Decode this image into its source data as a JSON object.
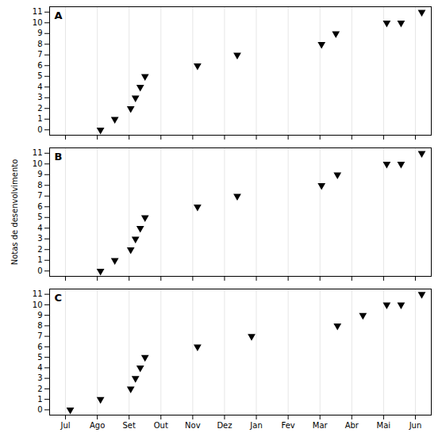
{
  "chart_data": [
    {
      "type": "scatter",
      "title": "A",
      "x": [
        1.1,
        1.55,
        2.05,
        2.2,
        2.35,
        2.5,
        4.15,
        5.4,
        8.05,
        8.5,
        10.1,
        10.55,
        11.2
      ],
      "values": [
        0,
        1,
        2,
        3,
        4,
        5,
        6,
        7,
        8,
        9,
        10,
        10,
        11
      ],
      "color": "black",
      "marker": "triangle-down",
      "xlim": [
        -0.5,
        11.5
      ],
      "xticks": [
        0,
        1,
        2,
        3,
        4,
        5,
        6,
        7,
        8,
        9,
        10,
        11
      ],
      "ylim": [
        -0.5,
        11.5
      ],
      "yticks": [
        0,
        1,
        2,
        3,
        4,
        5,
        6,
        7,
        8,
        9,
        10,
        11
      ],
      "grid": "x",
      "tick_labels": "y"
    },
    {
      "type": "scatter",
      "title": "B",
      "ylabel": "Notas de desenvolvimento",
      "x": [
        1.1,
        1.55,
        2.05,
        2.2,
        2.35,
        2.5,
        4.15,
        5.4,
        8.05,
        8.55,
        10.1,
        10.55,
        11.2
      ],
      "values": [
        0,
        1,
        2,
        3,
        4,
        5,
        6,
        7,
        8,
        9,
        10,
        10,
        11
      ],
      "color": "black",
      "marker": "triangle-down",
      "xlim": [
        -0.5,
        11.5
      ],
      "xticks": [
        0,
        1,
        2,
        3,
        4,
        5,
        6,
        7,
        8,
        9,
        10,
        11
      ],
      "ylim": [
        -0.5,
        11.5
      ],
      "yticks": [
        0,
        1,
        2,
        3,
        4,
        5,
        6,
        7,
        8,
        9,
        10,
        11
      ],
      "grid": "x",
      "tick_labels": "y"
    },
    {
      "type": "scatter",
      "title": "C",
      "x": [
        0.15,
        1.1,
        2.05,
        2.2,
        2.35,
        2.5,
        4.15,
        5.85,
        8.55,
        9.35,
        10.1,
        10.55,
        11.2
      ],
      "values": [
        0,
        1,
        2,
        3,
        4,
        5,
        6,
        7,
        8,
        9,
        10,
        10,
        11
      ],
      "color": "black",
      "marker": "triangle-down",
      "xlim": [
        -0.5,
        11.5
      ],
      "xticks": [
        {
          "value": 0,
          "label": "Jul"
        },
        {
          "value": 1,
          "label": "Ago"
        },
        {
          "value": 2,
          "label": "Set"
        },
        {
          "value": 3,
          "label": "Out"
        },
        {
          "value": 4,
          "label": "Nov"
        },
        {
          "value": 5,
          "label": "Dez"
        },
        {
          "value": 6,
          "label": "Jan"
        },
        {
          "value": 7,
          "label": "Fev"
        },
        {
          "value": 8,
          "label": "Mar"
        },
        {
          "value": 9,
          "label": "Abr"
        },
        {
          "value": 10,
          "label": "Mai"
        },
        {
          "value": 11,
          "label": "Jun"
        }
      ],
      "ylim": [
        -0.5,
        11.5
      ],
      "yticks": [
        0,
        1,
        2,
        3,
        4,
        5,
        6,
        7,
        8,
        9,
        10,
        11
      ],
      "grid": "x"
    }
  ]
}
